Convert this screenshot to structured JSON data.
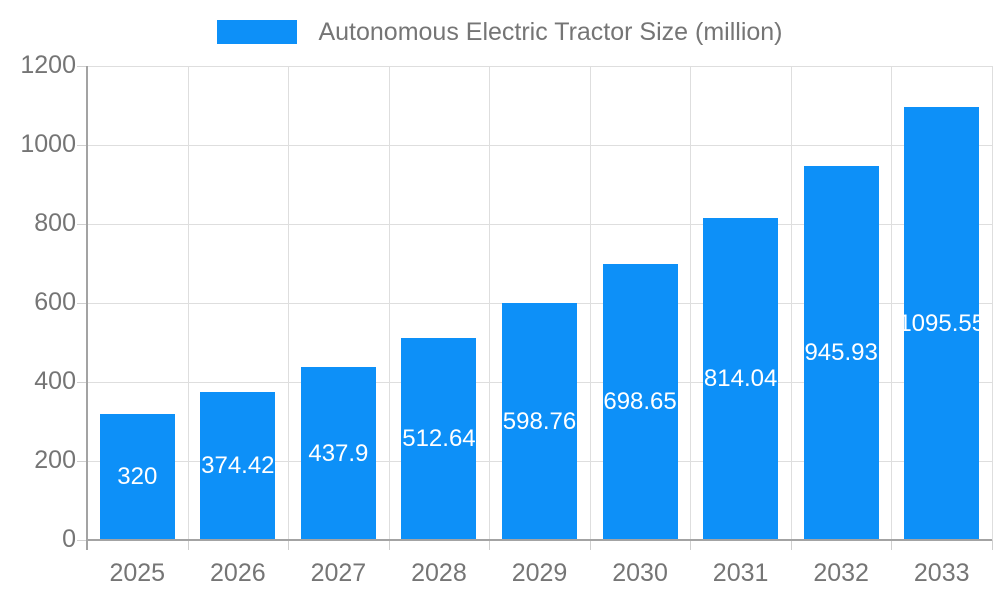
{
  "chart_data": {
    "type": "bar",
    "title": "Autonomous Electric Tractor Size (million)",
    "legend": {
      "position": "top",
      "label": "Autonomous Electric Tractor Size (million)"
    },
    "categories": [
      "2025",
      "2026",
      "2027",
      "2028",
      "2029",
      "2030",
      "2031",
      "2032",
      "2033"
    ],
    "values": [
      320,
      374.42,
      437.9,
      512.64,
      598.76,
      698.65,
      814.04,
      945.93,
      1095.55
    ],
    "xlabel": "",
    "ylabel": "",
    "ylim": [
      0,
      1200
    ],
    "yticks": [
      0,
      200,
      400,
      600,
      800,
      1000,
      1200
    ],
    "grid": "horizontal and vertical",
    "data_labels": "white, centered inside bars",
    "colors": {
      "bar": "#0D90F8",
      "axis_text": "#757575",
      "data_label_text": "#FFFFFF",
      "grid_line": "#DEDEDE",
      "tick_line": "#CFCFCF",
      "axis_line": "#A3A3A3",
      "background": "#FFFFFF"
    }
  }
}
